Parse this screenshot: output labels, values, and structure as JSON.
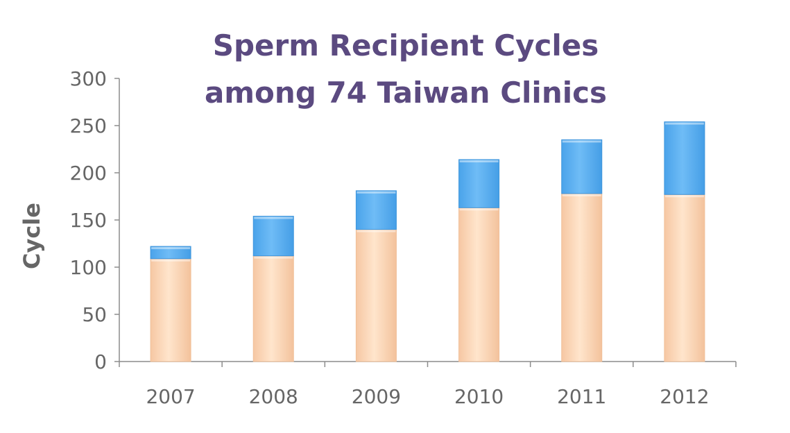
{
  "chart_data": {
    "type": "bar",
    "stacked": true,
    "title": [
      "Sperm Recipient Cycles",
      "among 74 Taiwan Clinics"
    ],
    "ylabel": "Cycle",
    "xlabel": "",
    "categories": [
      "2007",
      "2008",
      "2009",
      "2010",
      "2011",
      "2012"
    ],
    "ylim": [
      0,
      300
    ],
    "yticks": [
      "0",
      "50",
      "100",
      "150",
      "200",
      "250",
      "300"
    ],
    "grid": false,
    "legend": "none",
    "series": [
      {
        "values": [
          109,
          112,
          140,
          163,
          178,
          177
        ],
        "color": "#fde0c2"
      },
      {
        "values": [
          13,
          42,
          41,
          51,
          57,
          77
        ],
        "color": "#5aaff0"
      }
    ]
  }
}
